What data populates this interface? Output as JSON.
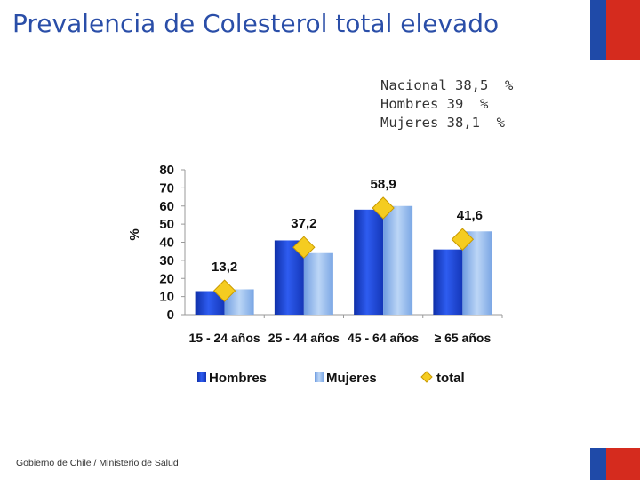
{
  "slide": {
    "title": "Prevalencia de Colesterol total elevado",
    "stats": [
      "Nacional 38,5  %",
      "Hombres 39  %",
      "Mujeres 38,1  %"
    ],
    "footer": "Gobierno de Chile / Ministerio de Salud"
  },
  "colors": {
    "title": "#2a4ea8",
    "flag_blue": "#1f4aa8",
    "flag_red": "#d52b1e",
    "hombres": "#1f45d6",
    "mujeres": "#8fb8ec",
    "total": "#f5cc20"
  },
  "chart_data": {
    "type": "bar",
    "ylabel": "%",
    "ylim": [
      0,
      80
    ],
    "yticks": [
      "0",
      "10",
      "20",
      "30",
      "40",
      "50",
      "60",
      "70",
      "80"
    ],
    "categories": [
      "15 - 24 años",
      "25 - 44 años",
      "45 - 64 años",
      "≥ 65 años"
    ],
    "series": [
      {
        "name": "Hombres",
        "values": [
          13,
          41,
          58,
          36
        ]
      },
      {
        "name": "Mujeres",
        "values": [
          14,
          34,
          60,
          46
        ]
      }
    ],
    "total": {
      "name": "total",
      "values": [
        13.2,
        37.2,
        58.9,
        41.6
      ],
      "labels": [
        "13,2",
        "37,2",
        "58,9",
        "41,6"
      ]
    },
    "legend": [
      "Hombres",
      "Mujeres",
      "total"
    ]
  }
}
